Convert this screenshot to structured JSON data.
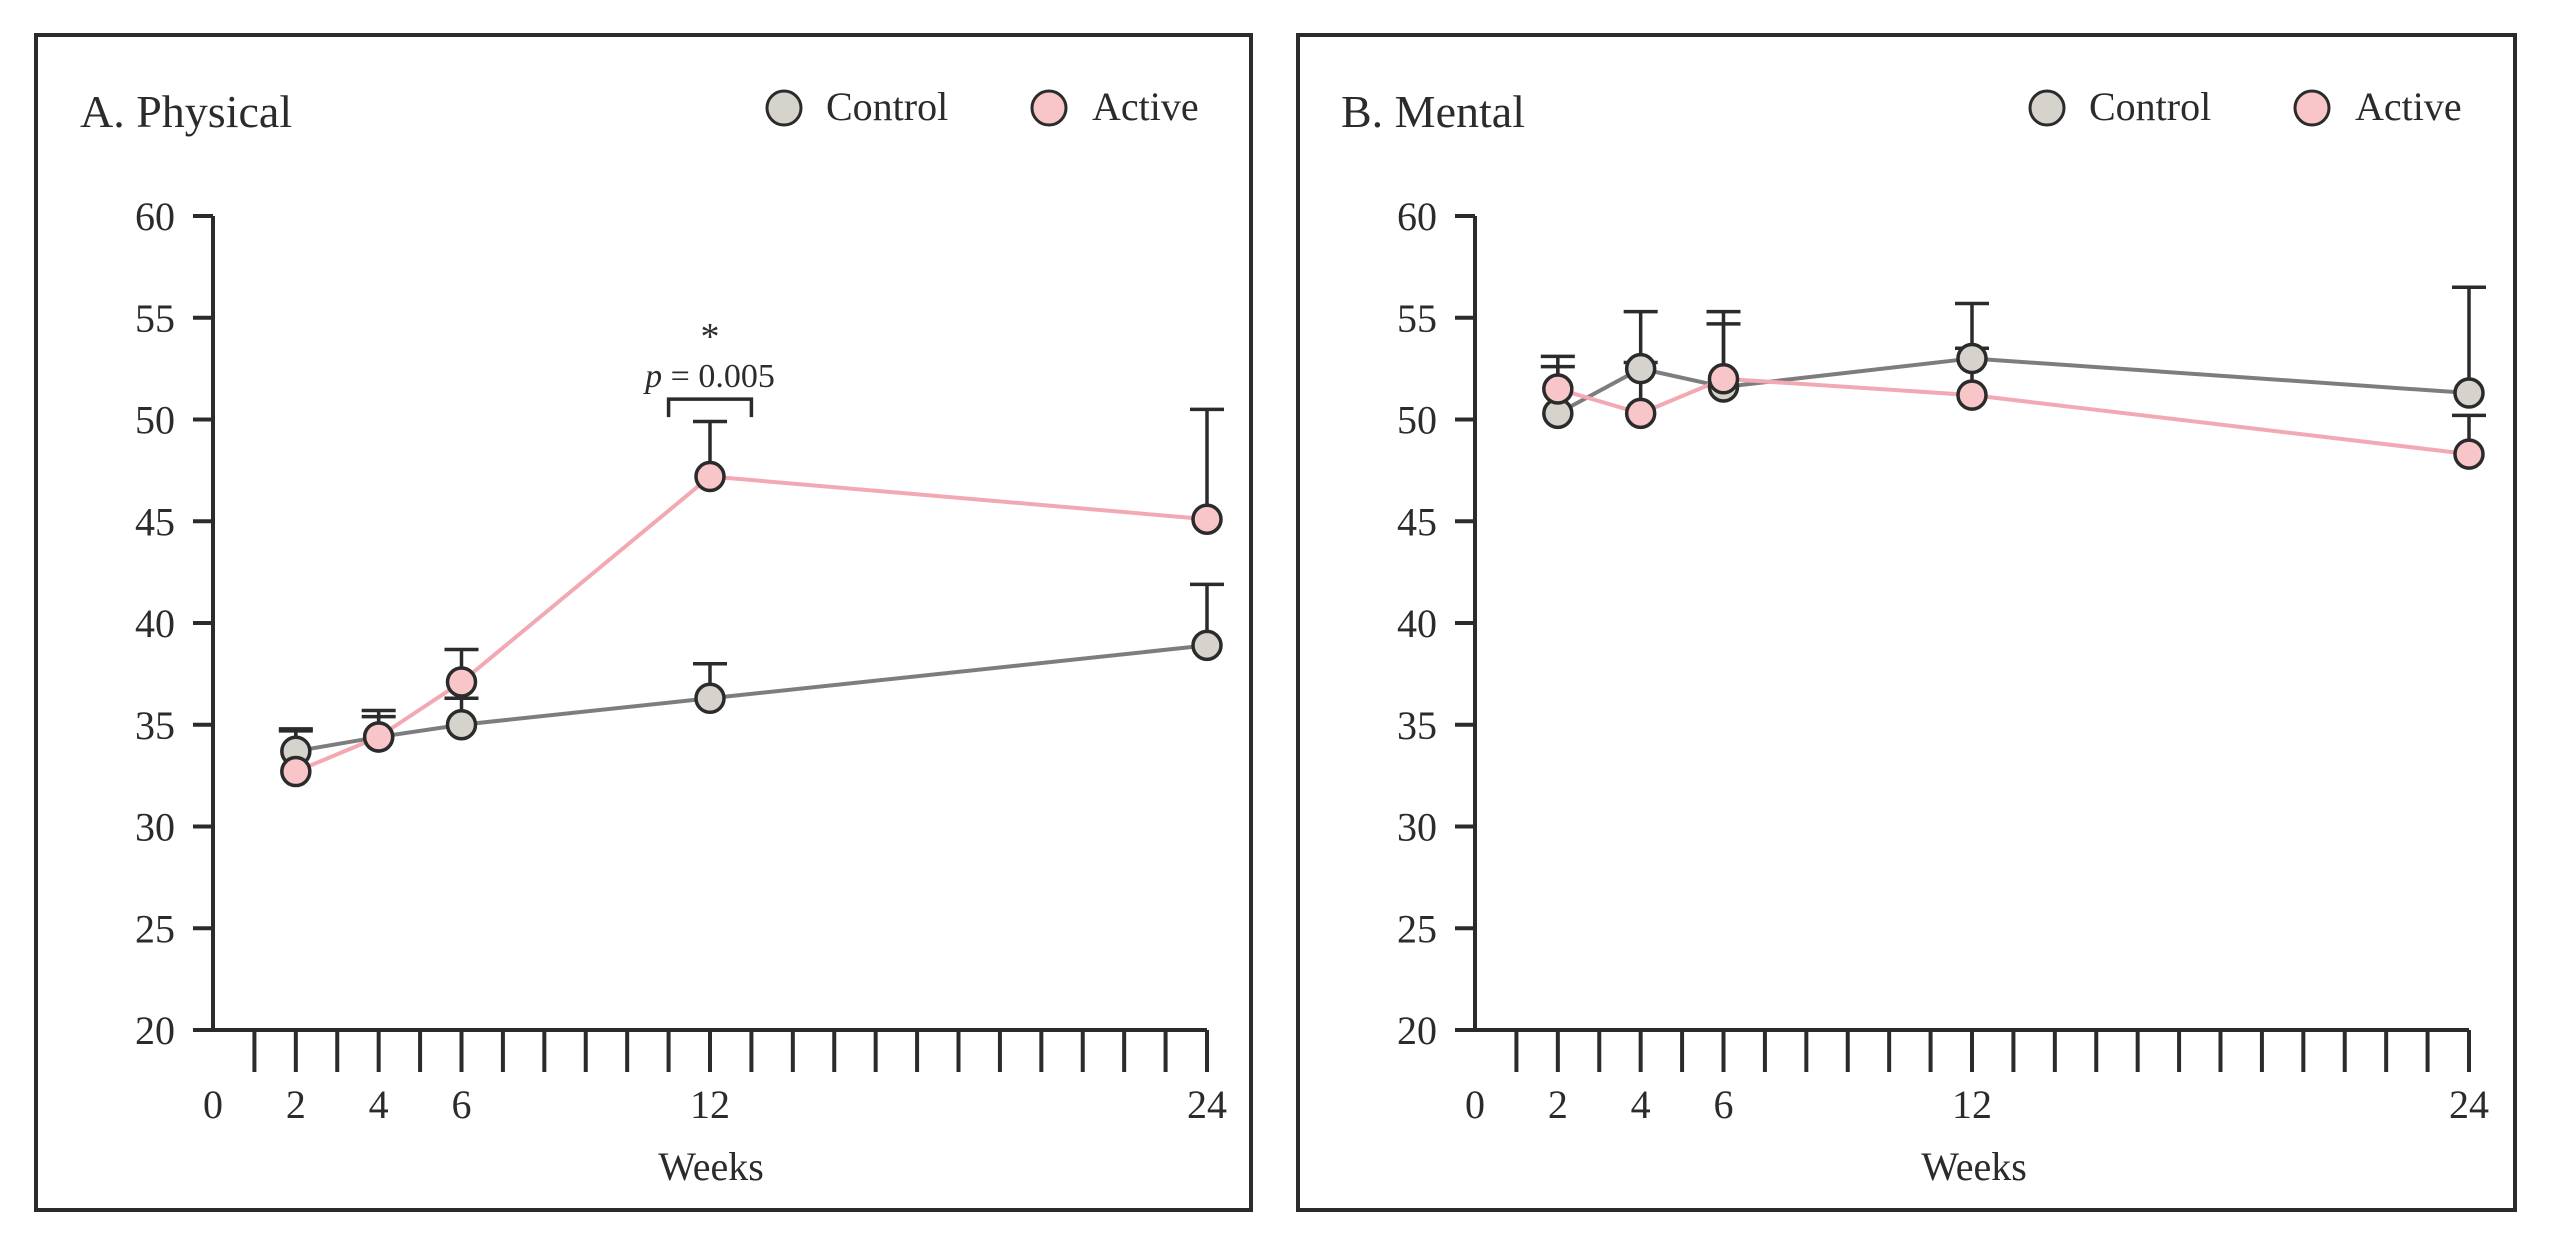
{
  "chart_data": [
    {
      "type": "line",
      "title": "A. Physical",
      "xlabel": "Weeks",
      "ylabel": "",
      "xlim": [
        0,
        24
      ],
      "ylim": [
        20,
        60
      ],
      "xticks": [
        0,
        2,
        4,
        6,
        12,
        24
      ],
      "xtick_labels": [
        "0",
        "2",
        "4",
        "6",
        "12",
        "24"
      ],
      "yticks": [
        20,
        25,
        30,
        35,
        40,
        45,
        50,
        55,
        60
      ],
      "ytick_labels": [
        "20",
        "25",
        "30",
        "35",
        "40",
        "45",
        "50",
        "55",
        "60"
      ],
      "minor_x_step": 1,
      "legend_position": "top-right",
      "series": [
        {
          "name": "Control",
          "line_color": "#7d7d7d",
          "marker_color": "#d6d3cd",
          "x": [
            2,
            4,
            6,
            12,
            24
          ],
          "values": [
            33.7,
            34.4,
            35.0,
            36.3,
            38.9
          ],
          "error_upper": [
            34.7,
            35.4,
            36.3,
            38.0,
            41.9
          ]
        },
        {
          "name": "Active",
          "line_color": "#f2a9b3",
          "marker_color": "#f8c5c8",
          "x": [
            2,
            4,
            6,
            12,
            24
          ],
          "values": [
            32.7,
            34.4,
            37.1,
            47.2,
            45.1
          ],
          "error_upper": [
            34.8,
            35.7,
            38.7,
            49.9,
            50.5
          ]
        }
      ],
      "annotation": {
        "star": "*",
        "p_label": "p",
        "p_value": " = 0.005",
        "x_from": 11,
        "x_to": 13,
        "y": 51
      }
    },
    {
      "type": "line",
      "title": "B. Mental",
      "xlabel": "Weeks",
      "ylabel": "",
      "xlim": [
        0,
        24
      ],
      "ylim": [
        20,
        60
      ],
      "xticks": [
        0,
        2,
        4,
        6,
        12,
        24
      ],
      "xtick_labels": [
        "0",
        "2",
        "4",
        "6",
        "12",
        "24"
      ],
      "yticks": [
        20,
        25,
        30,
        35,
        40,
        45,
        50,
        55,
        60
      ],
      "ytick_labels": [
        "20",
        "25",
        "30",
        "35",
        "40",
        "45",
        "50",
        "55",
        "60"
      ],
      "minor_x_step": 1,
      "legend_position": "top-right",
      "series": [
        {
          "name": "Control",
          "line_color": "#7d7d7d",
          "marker_color": "#d6d3cd",
          "x": [
            2,
            4,
            6,
            12,
            24
          ],
          "values": [
            50.3,
            52.5,
            51.6,
            53.0,
            51.3
          ],
          "error_upper": [
            52.6,
            55.3,
            55.3,
            55.7,
            56.5
          ]
        },
        {
          "name": "Active",
          "line_color": "#f2a9b3",
          "marker_color": "#f8c5c8",
          "x": [
            2,
            4,
            6,
            12,
            24
          ],
          "values": [
            51.5,
            50.3,
            52.0,
            51.2,
            48.3
          ],
          "error_upper": [
            53.1,
            52.8,
            54.7,
            53.5,
            50.2
          ]
        }
      ]
    }
  ]
}
